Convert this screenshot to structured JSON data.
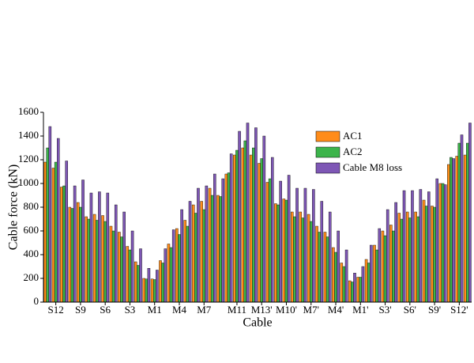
{
  "chart_data": {
    "type": "bar",
    "x_label": "Cable",
    "y_label": "Cable force (kN)",
    "categories": [
      null,
      "S12",
      null,
      null,
      "S9",
      null,
      null,
      "S6",
      null,
      null,
      "S3",
      null,
      null,
      "M1",
      null,
      null,
      "M4",
      null,
      null,
      "M7",
      null,
      null,
      null,
      "M11",
      null,
      null,
      "M13'",
      null,
      null,
      "M10'",
      null,
      null,
      "M7'",
      null,
      null,
      "M4'",
      null,
      null,
      "M1'",
      null,
      null,
      "S3'",
      null,
      null,
      "S6'",
      null,
      null,
      "S9'",
      null,
      null,
      "S12'",
      null
    ],
    "series": [
      {
        "name": "AC1",
        "color": "#ff8c1a",
        "values": [
          1180,
          1130,
          970,
          800,
          840,
          720,
          740,
          730,
          640,
          590,
          470,
          340,
          200,
          195,
          350,
          490,
          620,
          690,
          820,
          850,
          960,
          900,
          1080,
          1240,
          1300,
          1240,
          1170,
          1010,
          830,
          870,
          760,
          760,
          740,
          640,
          590,
          460,
          330,
          180,
          210,
          360,
          480,
          600,
          650,
          750,
          760,
          760,
          860,
          810,
          1000,
          1160,
          1230,
          1240
        ]
      },
      {
        "name": "AC2",
        "color": "#3cb44b",
        "values": [
          1300,
          1180,
          980,
          790,
          800,
          700,
          690,
          680,
          600,
          550,
          440,
          310,
          195,
          190,
          330,
          460,
          570,
          640,
          750,
          780,
          900,
          890,
          1090,
          1280,
          1360,
          1300,
          1210,
          1040,
          820,
          860,
          720,
          710,
          680,
          590,
          550,
          420,
          300,
          170,
          210,
          330,
          440,
          560,
          600,
          700,
          710,
          720,
          810,
          800,
          1000,
          1220,
          1340,
          1340
        ]
      },
      {
        "name": "Cable M8 loss",
        "color": "#7e57b5",
        "values": [
          1480,
          1380,
          1190,
          980,
          1030,
          920,
          930,
          920,
          820,
          760,
          600,
          450,
          285,
          270,
          450,
          610,
          780,
          850,
          960,
          980,
          1080,
          1040,
          1250,
          1440,
          1510,
          1470,
          1400,
          1220,
          1020,
          1070,
          960,
          960,
          950,
          850,
          760,
          600,
          440,
          245,
          300,
          480,
          620,
          780,
          840,
          940,
          940,
          950,
          930,
          1040,
          990,
          1210,
          1410,
          1510
        ]
      }
    ],
    "ylim": [
      0,
      1600
    ],
    "yticks": [
      0,
      200,
      400,
      600,
      800,
      1000,
      1200,
      1400,
      1600
    ],
    "legend": "upper-right"
  }
}
